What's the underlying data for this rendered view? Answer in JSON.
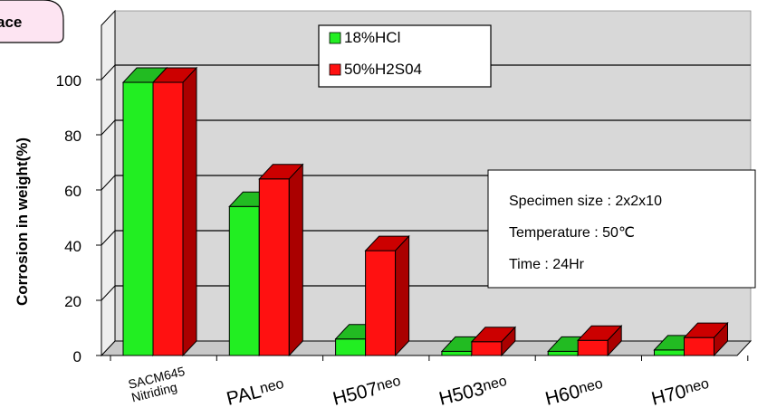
{
  "corner_tab": {
    "label": "ace"
  },
  "chart_data": {
    "type": "bar",
    "title": "",
    "xlabel": "",
    "ylabel": "Corrosion in weight(%)",
    "ylim": [
      0,
      100
    ],
    "yticks": [
      0,
      20,
      40,
      60,
      80,
      100
    ],
    "grid": true,
    "legend_position": "top-center",
    "categories": [
      "SACM645 Nitriding",
      "PALneo",
      "H507neo",
      "H503neo",
      "H60neo",
      "H70neo"
    ],
    "category_lines": [
      [
        "SACM645",
        "Nitriding"
      ],
      [
        "PALneo"
      ],
      [
        "H507neo"
      ],
      [
        "H503neo"
      ],
      [
        "H60neo"
      ],
      [
        "H70neo"
      ]
    ],
    "series": [
      {
        "name": "18%HCl",
        "values": [
          99,
          54,
          6,
          1.5,
          1.5,
          2
        ],
        "color": "#22ee22",
        "top_color": "#22bb22",
        "side_color": "#118811"
      },
      {
        "name": "50%H2S04",
        "values": [
          99,
          64,
          38,
          5,
          5.5,
          6.5
        ],
        "color": "#ff1111",
        "top_color": "#cc0000",
        "side_color": "#aa0000"
      }
    ],
    "annotation": {
      "lines": [
        "Specimen size : 2x2x10",
        "Temperature : 50℃",
        "Time : 24Hr"
      ]
    },
    "colors": {
      "plot_back": "#d8d8d8",
      "grid": "#000000"
    }
  }
}
